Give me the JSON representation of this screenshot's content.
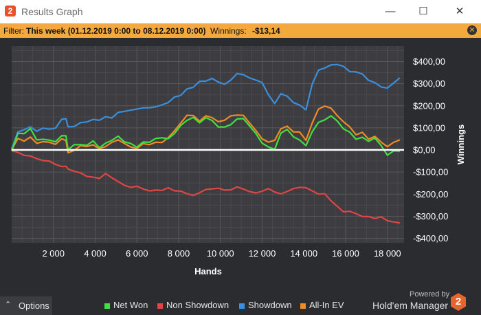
{
  "window": {
    "title": "Results Graph",
    "app_icon_text": "2",
    "buttons": [
      "minimize",
      "maximize",
      "close"
    ]
  },
  "filter": {
    "label": "Filter:",
    "value": "This week (01.12.2019 0:00 to 08.12.2019 0:00)",
    "winnings_label": "Winnings:",
    "winnings_value": "-$13,14",
    "close_icon": "close-circle-icon"
  },
  "options": {
    "label": "Options",
    "icon": "chevron-up-icon"
  },
  "branding": {
    "powered_by": "Powered by",
    "product": "Hold'em Manager",
    "logo_text": "2"
  },
  "colors": {
    "net_won": "#3fe03f",
    "non_showdown": "#e04545",
    "showdown": "#3a8fdc",
    "allin_ev": "#f08a24",
    "zero_line": "#ffffff"
  },
  "chart_data": {
    "type": "line",
    "xlabel": "Hands",
    "ylabel": "Winnings",
    "xlim": [
      0,
      18800
    ],
    "ylim": [
      -420,
      470
    ],
    "x_ticks": [
      2000,
      4000,
      6000,
      8000,
      10000,
      12000,
      14000,
      16000,
      18000
    ],
    "x_tick_labels": [
      "2 000",
      "4 000",
      "6 000",
      "8 000",
      "10 000",
      "12 000",
      "14 000",
      "16 000",
      "18 000"
    ],
    "y_ticks": [
      400,
      300,
      200,
      100,
      0,
      -100,
      -200,
      -300,
      -400
    ],
    "y_tick_labels": [
      "$400,00",
      "$300,00",
      "$200,00",
      "$100,00",
      "$0,00",
      "-$100,00",
      "-$200,00",
      "-$300,00",
      "-$400,00"
    ],
    "grid": true,
    "legend_position": "bottom",
    "x": [
      0,
      300,
      600,
      900,
      1200,
      1500,
      1800,
      2100,
      2400,
      2600,
      2700,
      3000,
      3300,
      3600,
      3900,
      4200,
      4500,
      4800,
      5100,
      5400,
      5700,
      6000,
      6300,
      6600,
      6900,
      7200,
      7500,
      7800,
      8100,
      8400,
      8700,
      9000,
      9300,
      9600,
      9900,
      10200,
      10500,
      10800,
      11100,
      11400,
      11700,
      12000,
      12300,
      12600,
      12900,
      13200,
      13500,
      13800,
      14100,
      14400,
      14700,
      15000,
      15300,
      15600,
      15900,
      16200,
      16500,
      16800,
      17100,
      17400,
      17700,
      18000,
      18300,
      18600
    ],
    "series": [
      {
        "name": "Net Won",
        "values": [
          0,
          70,
          75,
          95,
          45,
          50,
          40,
          35,
          65,
          70,
          5,
          20,
          30,
          25,
          40,
          15,
          30,
          45,
          60,
          40,
          30,
          15,
          35,
          30,
          50,
          55,
          45,
          70,
          110,
          140,
          150,
          120,
          145,
          130,
          105,
          110,
          120,
          140,
          145,
          110,
          80,
          30,
          10,
          5,
          80,
          90,
          60,
          40,
          15,
          80,
          120,
          140,
          155,
          130,
          100,
          80,
          45,
          55,
          35,
          50,
          15,
          -20,
          -10,
          -10
        ]
      },
      {
        "name": "Non Showdown",
        "values": [
          0,
          -10,
          -25,
          -30,
          -35,
          -45,
          -50,
          -65,
          -75,
          -80,
          -85,
          -95,
          -105,
          -115,
          -125,
          -130,
          -110,
          -120,
          -140,
          -155,
          -165,
          -170,
          -175,
          -180,
          -185,
          -180,
          -175,
          -180,
          -190,
          -200,
          -205,
          -195,
          -180,
          -175,
          -178,
          -180,
          -175,
          -170,
          -180,
          -185,
          -190,
          -185,
          -180,
          -190,
          -195,
          -185,
          -180,
          -170,
          -165,
          -180,
          -200,
          -200,
          -230,
          -260,
          -275,
          -280,
          -290,
          -300,
          -300,
          -310,
          -305,
          -315,
          -320,
          -335
        ]
      },
      {
        "name": "Showdown",
        "values": [
          0,
          80,
          90,
          110,
          85,
          100,
          95,
          100,
          140,
          140,
          110,
          110,
          120,
          130,
          140,
          140,
          150,
          150,
          170,
          175,
          180,
          180,
          185,
          190,
          200,
          205,
          210,
          240,
          250,
          270,
          285,
          305,
          310,
          320,
          310,
          300,
          320,
          345,
          340,
          325,
          315,
          300,
          250,
          210,
          260,
          240,
          220,
          205,
          185,
          300,
          360,
          370,
          380,
          385,
          380,
          360,
          355,
          340,
          320,
          310,
          290,
          280,
          300,
          330
        ]
      },
      {
        "name": "All-In EV",
        "values": [
          0,
          50,
          45,
          60,
          35,
          40,
          30,
          30,
          45,
          40,
          -10,
          0,
          15,
          10,
          20,
          5,
          15,
          30,
          40,
          25,
          15,
          10,
          25,
          20,
          30,
          40,
          50,
          90,
          120,
          160,
          160,
          130,
          150,
          145,
          130,
          140,
          150,
          160,
          155,
          120,
          90,
          45,
          30,
          40,
          95,
          105,
          80,
          80,
          45,
          120,
          185,
          200,
          190,
          160,
          130,
          100,
          70,
          80,
          55,
          60,
          30,
          20,
          40,
          50
        ]
      }
    ]
  }
}
